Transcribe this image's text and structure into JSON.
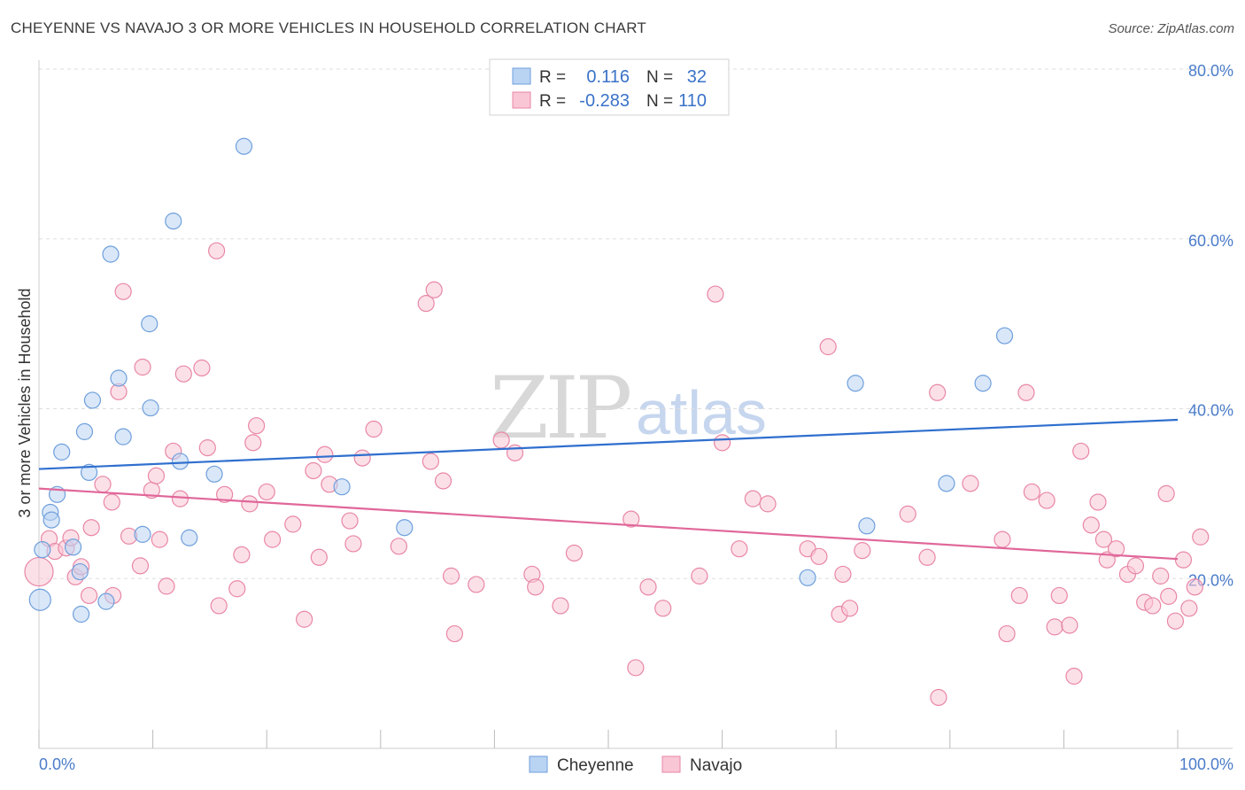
{
  "title": "CHEYENNE VS NAVAJO 3 OR MORE VEHICLES IN HOUSEHOLD CORRELATION CHART",
  "source": "Source: ZipAtlas.com",
  "watermark": {
    "zip": "ZIP",
    "atlas": "atlas"
  },
  "legend": {
    "r_label": "R =",
    "n_label": "N =",
    "entries": [
      {
        "name": "Cheyenne",
        "r": "0.116",
        "n": "32",
        "fill": "#b9d3f3",
        "stroke": "#6f9fdc"
      },
      {
        "name": "Navajo",
        "r": "-0.283",
        "n": "110",
        "fill": "#f9c6d5",
        "stroke": "#e887a6"
      }
    ]
  },
  "colors": {
    "cheyenne_fill": "#b9d3f3",
    "cheyenne_stroke": "#6f9fdc",
    "cheyenne_line": "#2f6fce",
    "navajo_fill": "#f9c6d5",
    "navajo_stroke": "#e887a6",
    "navajo_line": "#e0679a",
    "grid": "#dddddd",
    "tick_label": "#4a7cc9"
  },
  "chart_data": {
    "type": "scatter",
    "title": "CHEYENNE VS NAVAJO 3 OR MORE VEHICLES IN HOUSEHOLD CORRELATION CHART",
    "xlabel": "",
    "ylabel": "3 or more Vehicles in Household",
    "xlim": [
      0,
      100
    ],
    "ylim": [
      0,
      80
    ],
    "x_tick_labels": [
      "0.0%",
      "100.0%"
    ],
    "y_ticks": [
      20,
      40,
      60,
      80
    ],
    "y_tick_labels": [
      "20.0%",
      "40.0%",
      "60.0%",
      "80.0%"
    ],
    "grid": true,
    "legend_position": "top-center",
    "series": [
      {
        "name": "Cheyenne",
        "trend": {
          "x": [
            0,
            100
          ],
          "y": [
            32.9,
            38.7
          ]
        },
        "points": [
          [
            0.1,
            17.5
          ],
          [
            1.0,
            27.8
          ],
          [
            1.1,
            26.9
          ],
          [
            1.6,
            29.9
          ],
          [
            2.0,
            34.9
          ],
          [
            3.0,
            23.7
          ],
          [
            3.6,
            20.8
          ],
          [
            3.7,
            15.8
          ],
          [
            4.0,
            37.3
          ],
          [
            4.4,
            32.5
          ],
          [
            4.7,
            41.0
          ],
          [
            5.9,
            17.3
          ],
          [
            6.3,
            58.2
          ],
          [
            7.0,
            43.6
          ],
          [
            7.4,
            36.7
          ],
          [
            9.1,
            25.2
          ],
          [
            9.7,
            50.0
          ],
          [
            9.8,
            40.1
          ],
          [
            11.8,
            62.1
          ],
          [
            12.4,
            33.8
          ],
          [
            13.2,
            24.8
          ],
          [
            15.4,
            32.3
          ],
          [
            18.0,
            70.9
          ],
          [
            26.6,
            30.8
          ],
          [
            32.1,
            26.0
          ],
          [
            67.5,
            20.1
          ],
          [
            71.7,
            43.0
          ],
          [
            72.7,
            26.2
          ],
          [
            79.7,
            31.2
          ],
          [
            82.9,
            43.0
          ],
          [
            84.8,
            48.6
          ],
          [
            0.3,
            23.4
          ]
        ]
      },
      {
        "name": "Navajo",
        "trend": {
          "x": [
            0,
            100
          ],
          "y": [
            30.6,
            22.3
          ]
        },
        "points": [
          [
            0.0,
            20.8
          ],
          [
            0.9,
            24.7
          ],
          [
            1.4,
            23.2
          ],
          [
            2.4,
            23.6
          ],
          [
            2.8,
            24.8
          ],
          [
            3.2,
            20.2
          ],
          [
            3.7,
            21.4
          ],
          [
            4.4,
            18.0
          ],
          [
            4.6,
            26.0
          ],
          [
            5.6,
            31.1
          ],
          [
            6.4,
            29.0
          ],
          [
            6.5,
            18.0
          ],
          [
            7.0,
            42.0
          ],
          [
            7.4,
            53.8
          ],
          [
            7.9,
            25.0
          ],
          [
            8.9,
            21.5
          ],
          [
            9.1,
            44.9
          ],
          [
            9.9,
            30.4
          ],
          [
            10.3,
            32.1
          ],
          [
            10.6,
            24.6
          ],
          [
            11.2,
            19.1
          ],
          [
            11.8,
            35.0
          ],
          [
            12.4,
            29.4
          ],
          [
            12.7,
            44.1
          ],
          [
            14.3,
            44.8
          ],
          [
            14.8,
            35.4
          ],
          [
            15.6,
            58.6
          ],
          [
            15.8,
            16.8
          ],
          [
            16.3,
            29.9
          ],
          [
            17.4,
            18.8
          ],
          [
            17.8,
            22.8
          ],
          [
            18.5,
            28.8
          ],
          [
            18.8,
            36.0
          ],
          [
            19.1,
            38.0
          ],
          [
            20.0,
            30.2
          ],
          [
            20.5,
            24.6
          ],
          [
            22.3,
            26.4
          ],
          [
            23.3,
            15.2
          ],
          [
            24.1,
            32.7
          ],
          [
            24.6,
            22.5
          ],
          [
            25.1,
            34.6
          ],
          [
            25.5,
            31.1
          ],
          [
            27.3,
            26.8
          ],
          [
            27.6,
            24.1
          ],
          [
            28.4,
            34.2
          ],
          [
            29.4,
            37.6
          ],
          [
            31.6,
            23.8
          ],
          [
            34.0,
            52.4
          ],
          [
            34.4,
            33.8
          ],
          [
            34.7,
            54.0
          ],
          [
            35.5,
            31.5
          ],
          [
            36.2,
            20.3
          ],
          [
            36.5,
            13.5
          ],
          [
            38.4,
            19.3
          ],
          [
            40.6,
            36.3
          ],
          [
            41.8,
            34.8
          ],
          [
            43.3,
            20.5
          ],
          [
            43.6,
            19.0
          ],
          [
            45.8,
            16.8
          ],
          [
            47.0,
            23.0
          ],
          [
            52.0,
            27.0
          ],
          [
            52.4,
            9.5
          ],
          [
            53.5,
            19.0
          ],
          [
            54.8,
            16.5
          ],
          [
            58.0,
            20.3
          ],
          [
            59.4,
            53.5
          ],
          [
            60.0,
            36.0
          ],
          [
            61.5,
            23.5
          ],
          [
            62.7,
            29.4
          ],
          [
            64.0,
            28.8
          ],
          [
            67.5,
            23.5
          ],
          [
            68.5,
            22.6
          ],
          [
            69.3,
            47.3
          ],
          [
            70.3,
            15.8
          ],
          [
            70.6,
            20.5
          ],
          [
            71.2,
            16.5
          ],
          [
            72.3,
            23.3
          ],
          [
            76.3,
            27.6
          ],
          [
            78.0,
            22.5
          ],
          [
            78.9,
            41.9
          ],
          [
            79.0,
            6.0
          ],
          [
            81.8,
            31.2
          ],
          [
            84.6,
            24.6
          ],
          [
            85.0,
            13.5
          ],
          [
            86.1,
            18.0
          ],
          [
            86.7,
            41.9
          ],
          [
            87.2,
            30.2
          ],
          [
            88.5,
            29.2
          ],
          [
            89.2,
            14.3
          ],
          [
            89.6,
            18.0
          ],
          [
            90.5,
            14.5
          ],
          [
            90.9,
            8.5
          ],
          [
            91.5,
            35.0
          ],
          [
            92.4,
            26.3
          ],
          [
            93.0,
            29.0
          ],
          [
            93.5,
            24.6
          ],
          [
            93.8,
            22.2
          ],
          [
            94.6,
            23.5
          ],
          [
            95.6,
            20.5
          ],
          [
            96.3,
            21.5
          ],
          [
            97.1,
            17.2
          ],
          [
            97.8,
            16.8
          ],
          [
            98.5,
            20.3
          ],
          [
            99.0,
            30.0
          ],
          [
            99.2,
            17.9
          ],
          [
            99.8,
            15.0
          ],
          [
            100.5,
            22.2
          ],
          [
            101.0,
            16.5
          ],
          [
            101.5,
            19.0
          ],
          [
            102.0,
            24.9
          ]
        ]
      }
    ]
  }
}
